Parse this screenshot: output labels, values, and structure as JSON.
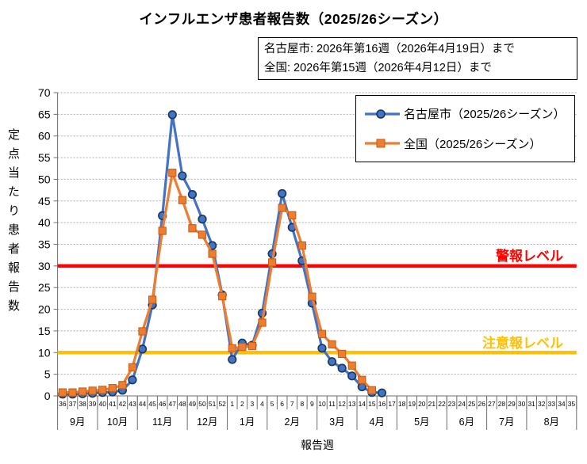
{
  "title": "インフルエンザ患者報告数（2025/26シーズン）",
  "info_box": {
    "line1": "名古屋市: 2026年第16週（2026年4月19日）まで",
    "line2": "全国: 2026年第15週（2026年4月12日）まで"
  },
  "legend": {
    "items": [
      {
        "label": "名古屋市（2025/26シーズン）",
        "color": "#4472C4",
        "marker": "circle"
      },
      {
        "label": "全国（2025/26シーズン）",
        "color": "#ED7D31",
        "marker": "square"
      }
    ]
  },
  "y_axis": {
    "label": "定点当たり患者報告数",
    "min": 0,
    "max": 70,
    "step": 5
  },
  "x_axis": {
    "label": "報告週"
  },
  "colors": {
    "nagoya": "#4472C4",
    "national": "#ED7D31",
    "warning_line": "#FF0000",
    "caution_line": "#FFC000",
    "gridline": "#ABABAB",
    "axis": "#6E6E6E"
  },
  "chart_data": {
    "type": "line",
    "title": "インフルエンザ患者報告数（2025/26シーズン）",
    "xlabel": "報告週",
    "ylabel": "定点当たり患者報告数",
    "ylim": [
      0,
      70
    ],
    "y_tick_step": 5,
    "grid": true,
    "legend_position": "top-right-inside",
    "categories": [
      "36",
      "37",
      "38",
      "39",
      "40",
      "41",
      "42",
      "43",
      "44",
      "45",
      "46",
      "47",
      "48",
      "49",
      "50",
      "51",
      "52",
      "1",
      "2",
      "3",
      "4",
      "5",
      "6",
      "7",
      "8",
      "9",
      "10",
      "11",
      "12",
      "13",
      "14",
      "15",
      "16",
      "17",
      "18",
      "19",
      "20",
      "21",
      "22",
      "23",
      "24",
      "25",
      "26",
      "27",
      "28",
      "29",
      "30",
      "31",
      "32",
      "33",
      "34",
      "35"
    ],
    "month_groups": [
      {
        "label": "9月",
        "span": 4
      },
      {
        "label": "10月",
        "span": 4
      },
      {
        "label": "11月",
        "span": 5
      },
      {
        "label": "12月",
        "span": 4
      },
      {
        "label": "1月",
        "span": 4
      },
      {
        "label": "2月",
        "span": 5
      },
      {
        "label": "3月",
        "span": 4
      },
      {
        "label": "4月",
        "span": 4
      },
      {
        "label": "5月",
        "span": 5
      },
      {
        "label": "6月",
        "span": 4
      },
      {
        "label": "7月",
        "span": 4
      },
      {
        "label": "8月",
        "span": 5
      }
    ],
    "series": [
      {
        "name": "名古屋市（2025/26シーズン）",
        "color": "#4472C4",
        "marker": "circle",
        "marker_edge": "#17375E",
        "values": [
          0.4,
          0.4,
          0.5,
          0.6,
          0.8,
          0.9,
          1.3,
          3.7,
          10.8,
          21.0,
          41.6,
          64.9,
          50.8,
          46.5,
          40.8,
          34.7,
          23.3,
          8.4,
          12.2,
          11.7,
          19.1,
          32.8,
          46.7,
          38.9,
          31.2,
          21.4,
          11.0,
          7.9,
          6.4,
          4.6,
          2.1,
          0.8,
          0.7,
          null,
          null,
          null,
          null,
          null,
          null,
          null,
          null,
          null,
          null,
          null,
          null,
          null,
          null,
          null,
          null,
          null,
          null,
          null
        ]
      },
      {
        "name": "全国（2025/26シーズン）",
        "color": "#ED7D31",
        "marker": "square",
        "marker_edge": "#C55A11",
        "values": [
          0.8,
          0.8,
          1.0,
          1.2,
          1.4,
          1.8,
          2.5,
          6.6,
          14.9,
          22.2,
          38.1,
          51.5,
          45.2,
          38.7,
          37.2,
          32.8,
          23.0,
          11.0,
          11.3,
          11.5,
          16.9,
          30.8,
          43.4,
          41.7,
          34.7,
          22.9,
          14.3,
          11.9,
          9.7,
          7.0,
          3.7,
          1.3,
          null,
          null,
          null,
          null,
          null,
          null,
          null,
          null,
          null,
          null,
          null,
          null,
          null,
          null,
          null,
          null,
          null,
          null,
          null,
          null
        ]
      }
    ],
    "reference_lines": [
      {
        "label": "警報レベル",
        "value": 30,
        "color": "#FF0000"
      },
      {
        "label": "注意報レベル",
        "value": 10,
        "color": "#FFC000"
      }
    ]
  }
}
